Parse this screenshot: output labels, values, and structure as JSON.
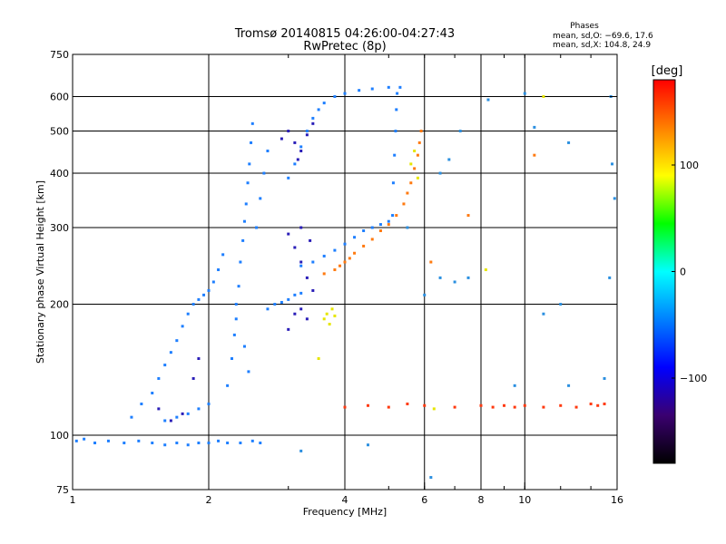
{
  "chart_data": {
    "type": "scatter",
    "title": "Tromsø 20140815 04:26:00-04:27:43",
    "subtitle": "RwPretec (8p)",
    "xlabel": "Frequency [MHz]",
    "ylabel": "Stationary phase Virtual Height [km]",
    "xscale": "log",
    "yscale": "log",
    "xlim": [
      1,
      16
    ],
    "ylim": [
      75,
      750
    ],
    "x_ticks": [
      1,
      2,
      4,
      6,
      8,
      10,
      16
    ],
    "x_tick_labels": [
      "1",
      "2",
      "4",
      "6",
      "8",
      "10",
      "16"
    ],
    "x_gridlines": [
      2,
      4,
      6,
      8,
      10
    ],
    "y_ticks": [
      75,
      100,
      200,
      300,
      400,
      500,
      600,
      750
    ],
    "y_tick_labels": [
      "75",
      "100",
      "200",
      "300",
      "400",
      "500",
      "600",
      "750"
    ],
    "y_gridlines": [
      100,
      200,
      300,
      400,
      500,
      600
    ],
    "legend": {
      "title": "Phases",
      "lines": [
        "mean, sd,O: −69.6, 17.6",
        "mean, sd,X: 104.8, 24.9"
      ]
    },
    "colorbar": {
      "label": "[deg]",
      "range": [
        -180,
        180
      ],
      "ticks": [
        100,
        0,
        -100
      ],
      "tick_labels": [
        "100",
        "0",
        "−100"
      ],
      "stops": [
        "#000000",
        "#3a0070",
        "#0000ff",
        "#0080ff",
        "#00ffff",
        "#00ff00",
        "#ffff00",
        "#ff8000",
        "#ff0000"
      ]
    },
    "series": [
      {
        "name": "O-mode trace (blue)",
        "color": "#1e7fff",
        "points": [
          [
            1.02,
            97
          ],
          [
            1.06,
            98
          ],
          [
            1.12,
            96
          ],
          [
            1.2,
            97
          ],
          [
            1.3,
            96
          ],
          [
            1.4,
            97
          ],
          [
            1.5,
            96
          ],
          [
            1.6,
            95
          ],
          [
            1.7,
            96
          ],
          [
            1.8,
            95
          ],
          [
            1.9,
            96
          ],
          [
            2.0,
            96
          ],
          [
            2.1,
            97
          ],
          [
            2.2,
            96
          ],
          [
            2.35,
            96
          ],
          [
            2.5,
            97
          ],
          [
            2.6,
            96
          ],
          [
            1.35,
            110
          ],
          [
            1.42,
            118
          ],
          [
            1.5,
            125
          ],
          [
            1.55,
            135
          ],
          [
            1.6,
            145
          ],
          [
            1.65,
            155
          ],
          [
            1.7,
            165
          ],
          [
            1.75,
            178
          ],
          [
            1.8,
            190
          ],
          [
            1.85,
            200
          ],
          [
            1.9,
            205
          ],
          [
            1.95,
            210
          ],
          [
            2.0,
            215
          ],
          [
            2.05,
            225
          ],
          [
            2.1,
            240
          ],
          [
            2.15,
            260
          ],
          [
            2.3,
            200
          ],
          [
            2.33,
            220
          ],
          [
            2.35,
            250
          ],
          [
            2.38,
            280
          ],
          [
            2.4,
            310
          ],
          [
            2.42,
            340
          ],
          [
            2.44,
            380
          ],
          [
            2.46,
            420
          ],
          [
            2.48,
            470
          ],
          [
            2.5,
            520
          ],
          [
            2.55,
            300
          ],
          [
            2.6,
            350
          ],
          [
            2.65,
            400
          ],
          [
            2.7,
            450
          ],
          [
            2.2,
            130
          ],
          [
            2.25,
            150
          ],
          [
            2.28,
            170
          ],
          [
            2.3,
            185
          ],
          [
            2.4,
            160
          ],
          [
            2.45,
            140
          ],
          [
            3.0,
            390
          ],
          [
            3.1,
            420
          ],
          [
            3.2,
            460
          ],
          [
            3.3,
            500
          ],
          [
            3.4,
            535
          ],
          [
            3.5,
            560
          ],
          [
            3.6,
            580
          ],
          [
            3.8,
            600
          ],
          [
            4.0,
            610
          ],
          [
            4.3,
            620
          ],
          [
            4.6,
            625
          ],
          [
            5.0,
            630
          ],
          [
            5.3,
            630
          ],
          [
            5.1,
            320
          ],
          [
            5.12,
            380
          ],
          [
            5.15,
            440
          ],
          [
            5.18,
            500
          ],
          [
            5.2,
            560
          ],
          [
            5.22,
            610
          ],
          [
            3.2,
            245
          ],
          [
            3.4,
            250
          ],
          [
            3.6,
            258
          ],
          [
            3.8,
            266
          ],
          [
            4.0,
            275
          ],
          [
            4.2,
            285
          ],
          [
            4.4,
            295
          ],
          [
            4.6,
            300
          ],
          [
            4.8,
            305
          ],
          [
            5.0,
            310
          ],
          [
            2.7,
            195
          ],
          [
            2.8,
            200
          ],
          [
            2.9,
            202
          ],
          [
            3.0,
            205
          ],
          [
            3.1,
            210
          ],
          [
            3.2,
            212
          ],
          [
            1.6,
            108
          ],
          [
            1.7,
            110
          ],
          [
            1.8,
            112
          ],
          [
            1.9,
            115
          ],
          [
            2.0,
            118
          ]
        ]
      },
      {
        "name": "Dark blue / purple cluster",
        "color": "#2a1eb8",
        "points": [
          [
            2.9,
            480
          ],
          [
            3.0,
            500
          ],
          [
            3.1,
            470
          ],
          [
            3.2,
            450
          ],
          [
            3.3,
            490
          ],
          [
            3.4,
            520
          ],
          [
            3.15,
            430
          ],
          [
            3.0,
            290
          ],
          [
            3.1,
            270
          ],
          [
            3.2,
            250
          ],
          [
            3.3,
            230
          ],
          [
            3.4,
            215
          ],
          [
            3.2,
            300
          ],
          [
            3.35,
            280
          ],
          [
            1.55,
            115
          ],
          [
            1.65,
            108
          ],
          [
            1.75,
            112
          ],
          [
            1.85,
            135
          ],
          [
            1.9,
            150
          ],
          [
            3.1,
            190
          ],
          [
            3.2,
            195
          ],
          [
            3.3,
            185
          ],
          [
            3.0,
            175
          ]
        ]
      },
      {
        "name": "X-mode trace (orange)",
        "color": "#ff7a10",
        "points": [
          [
            3.6,
            235
          ],
          [
            3.8,
            240
          ],
          [
            3.9,
            245
          ],
          [
            4.0,
            250
          ],
          [
            4.1,
            255
          ],
          [
            4.2,
            262
          ],
          [
            4.4,
            272
          ],
          [
            4.6,
            282
          ],
          [
            4.8,
            295
          ],
          [
            5.0,
            305
          ],
          [
            5.2,
            320
          ],
          [
            5.4,
            340
          ],
          [
            5.5,
            360
          ],
          [
            5.6,
            380
          ],
          [
            5.7,
            410
          ],
          [
            5.8,
            440
          ],
          [
            5.85,
            470
          ],
          [
            5.9,
            500
          ],
          [
            10.5,
            440
          ],
          [
            6.2,
            250
          ],
          [
            7.5,
            320
          ]
        ]
      },
      {
        "name": "Yellow / green points",
        "color": "#e6e600",
        "points": [
          [
            3.6,
            185
          ],
          [
            3.65,
            190
          ],
          [
            3.7,
            180
          ],
          [
            3.75,
            195
          ],
          [
            3.8,
            188
          ],
          [
            5.6,
            420
          ],
          [
            5.7,
            450
          ],
          [
            5.8,
            390
          ],
          [
            3.5,
            150
          ],
          [
            11.0,
            600
          ],
          [
            6.3,
            115
          ],
          [
            8.2,
            240
          ]
        ]
      },
      {
        "name": "Band near 115 km",
        "color": "#ff3a10",
        "points": [
          [
            4.0,
            116
          ],
          [
            4.5,
            117
          ],
          [
            5.0,
            116
          ],
          [
            5.5,
            118
          ],
          [
            6.0,
            117
          ],
          [
            7.0,
            116
          ],
          [
            8.0,
            117
          ],
          [
            8.5,
            116
          ],
          [
            9.0,
            117
          ],
          [
            9.5,
            116
          ],
          [
            10.0,
            117
          ],
          [
            11.0,
            116
          ],
          [
            12.0,
            117
          ],
          [
            13.0,
            116
          ],
          [
            14.0,
            118
          ],
          [
            14.5,
            117
          ],
          [
            15.0,
            118
          ]
        ]
      },
      {
        "name": "Sparse high-frequency points",
        "color": "#2a8fe0",
        "points": [
          [
            8.3,
            590
          ],
          [
            10.0,
            610
          ],
          [
            10.5,
            510
          ],
          [
            12.5,
            470
          ],
          [
            15.5,
            600
          ],
          [
            15.6,
            420
          ],
          [
            15.8,
            350
          ],
          [
            15.4,
            230
          ],
          [
            12.0,
            200
          ],
          [
            11.0,
            190
          ],
          [
            9.5,
            130
          ],
          [
            12.5,
            130
          ],
          [
            15.0,
            135
          ],
          [
            6.5,
            230
          ],
          [
            7.0,
            225
          ],
          [
            7.5,
            230
          ],
          [
            6.0,
            210
          ],
          [
            7.2,
            500
          ],
          [
            6.8,
            430
          ],
          [
            6.5,
            400
          ],
          [
            5.5,
            300
          ],
          [
            4.5,
            95
          ],
          [
            3.2,
            92
          ],
          [
            6.2,
            80
          ]
        ]
      }
    ]
  }
}
